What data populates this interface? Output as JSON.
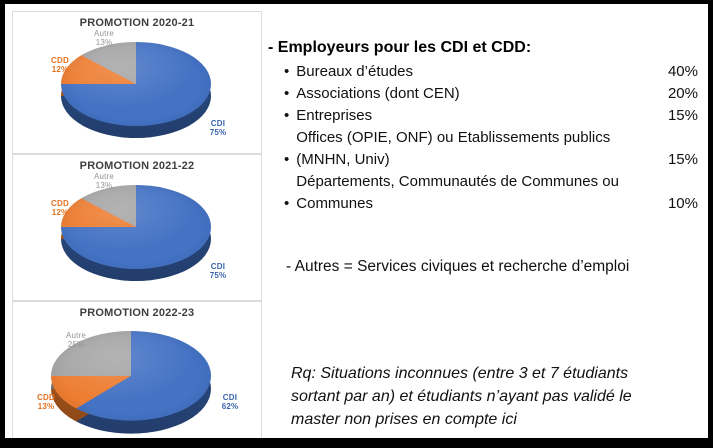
{
  "slide": {
    "background": "#FFFFFF",
    "border_color": "#000000"
  },
  "chart_data": [
    {
      "type": "pie",
      "style": "3d",
      "title": "PROMOTION 2020-21",
      "labels": [
        "CDI",
        "CDD",
        "Autre"
      ],
      "values": [
        75,
        12,
        13
      ],
      "colors": [
        "#4472C4",
        "#ED7D31",
        "#A5A5A5"
      ],
      "side_colors": [
        "#2C4E89",
        "#B05A1E",
        "#7E7E7E"
      ],
      "legend": "none",
      "callouts": {
        "cdi_name": "CDI",
        "cdi_pct": "75%",
        "cdd_name": "CDD",
        "cdd_pct": "12%",
        "autre_name": "Autre",
        "autre_pct": "13%"
      }
    },
    {
      "type": "pie",
      "style": "3d",
      "title": "PROMOTION 2021-22",
      "labels": [
        "CDI",
        "CDD",
        "Autre"
      ],
      "values": [
        75,
        12,
        13
      ],
      "colors": [
        "#4472C4",
        "#ED7D31",
        "#A5A5A5"
      ],
      "side_colors": [
        "#2C4E89",
        "#B05A1E",
        "#7E7E7E"
      ],
      "legend": "none",
      "callouts": {
        "cdi_name": "CDI",
        "cdi_pct": "75%",
        "cdd_name": "CDD",
        "cdd_pct": "12%",
        "autre_name": "Autre",
        "autre_pct": "13%"
      }
    },
    {
      "type": "pie",
      "style": "3d",
      "title": "PROMOTION 2022-23",
      "labels": [
        "CDI",
        "CDD",
        "Autre"
      ],
      "values": [
        62,
        13,
        25
      ],
      "colors": [
        "#4472C4",
        "#ED7D31",
        "#A5A5A5"
      ],
      "side_colors": [
        "#2C4E89",
        "#B05A1E",
        "#7E7E7E"
      ],
      "legend": "none",
      "callouts": {
        "cdi_name": "CDI",
        "cdi_pct": "62%",
        "cdd_name": "CDD",
        "cdd_pct": "13%",
        "autre_name": "Autre",
        "autre_pct": "25%"
      }
    }
  ],
  "employers": {
    "heading": "- Employeurs pour les CDI et CDD:",
    "items": [
      {
        "label": "Bureaux d’études",
        "pct": "40%"
      },
      {
        "label": "Associations (dont CEN)",
        "pct": "20%"
      },
      {
        "label": "Entreprises",
        "pct": "15%"
      },
      {
        "label": "Offices (OPIE, ONF) ou Etablissements publics (MNHN, Univ)",
        "pct": "15%"
      },
      {
        "label": "Départements, Communautés de Communes ou Communes",
        "pct": "10%"
      }
    ]
  },
  "autres_note": "- Autres = Services civiques et recherche d’emploi",
  "remark": {
    "lines": [
      "Rq: Situations inconnues (entre 3 et 7 étudiants",
      "sortant par an) et étudiants n’ayant pas validé le",
      "master non prises en compte ici"
    ]
  }
}
